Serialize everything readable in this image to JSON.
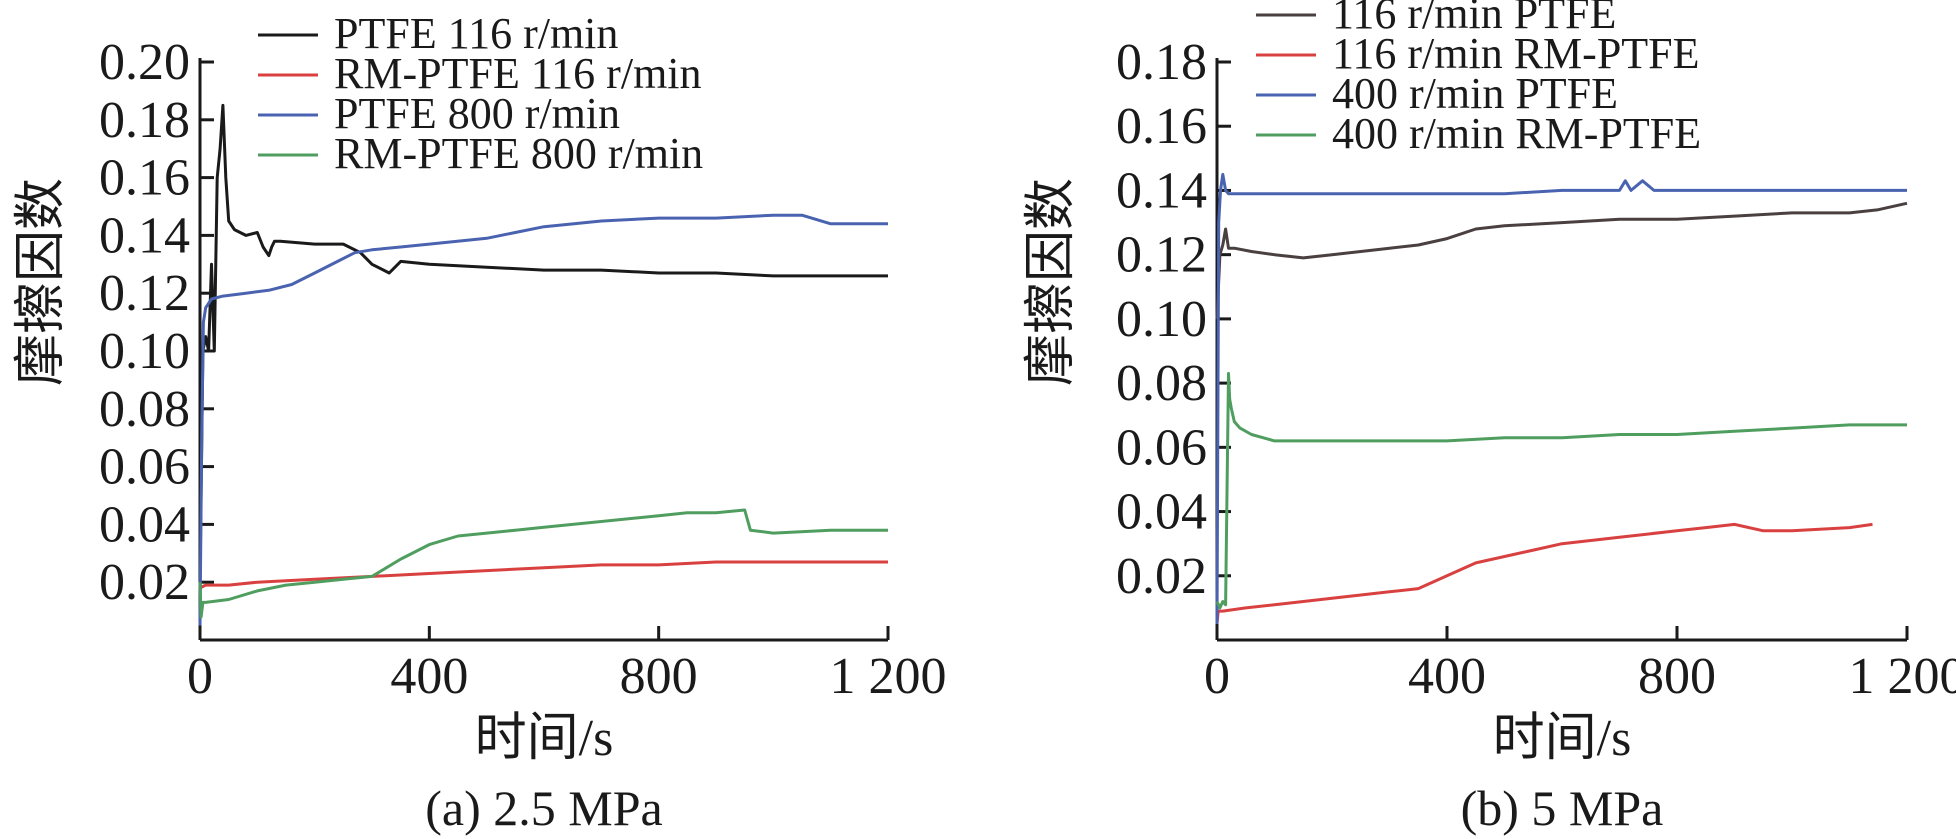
{
  "chart_data": [
    {
      "type": "line",
      "caption": "(a) 2.5 MPa",
      "xlabel": "时间/s",
      "ylabel": "摩擦因数",
      "xlim": [
        0,
        1200
      ],
      "ylim": [
        0,
        0.2
      ],
      "x_ticks": [
        "0",
        "400",
        "800",
        "1 200"
      ],
      "x_tick_values": [
        0,
        400,
        800,
        1200
      ],
      "y_ticks": [
        "0.02",
        "0.04",
        "0.06",
        "0.08",
        "0.10",
        "0.12",
        "0.14",
        "0.16",
        "0.18",
        "0.20"
      ],
      "y_tick_values": [
        0.02,
        0.04,
        0.06,
        0.08,
        0.1,
        0.12,
        0.14,
        0.16,
        0.18,
        0.2
      ],
      "grid": false,
      "legend_position": "top-center",
      "series": [
        {
          "name": "PTFE 116 r/min",
          "color": "#1a1a1a",
          "x": [
            0,
            5,
            10,
            15,
            20,
            25,
            30,
            35,
            40,
            45,
            50,
            60,
            80,
            100,
            110,
            120,
            125,
            130,
            140,
            200,
            250,
            280,
            300,
            330,
            350,
            400,
            500,
            600,
            700,
            800,
            900,
            1000,
            1100,
            1200
          ],
          "y": [
            0.02,
            0.1,
            0.105,
            0.1,
            0.13,
            0.1,
            0.16,
            0.17,
            0.185,
            0.16,
            0.145,
            0.142,
            0.14,
            0.141,
            0.136,
            0.133,
            0.136,
            0.138,
            0.138,
            0.137,
            0.137,
            0.134,
            0.13,
            0.127,
            0.131,
            0.13,
            0.129,
            0.128,
            0.128,
            0.127,
            0.127,
            0.126,
            0.126,
            0.126
          ]
        },
        {
          "name": "RM-PTFE 116 r/min",
          "color": "#d94040",
          "x": [
            0,
            10,
            50,
            100,
            200,
            300,
            400,
            500,
            600,
            700,
            800,
            900,
            1000,
            1100,
            1200
          ],
          "y": [
            0.018,
            0.019,
            0.019,
            0.02,
            0.021,
            0.022,
            0.023,
            0.024,
            0.025,
            0.026,
            0.026,
            0.027,
            0.027,
            0.027,
            0.027
          ]
        },
        {
          "name": "PTFE 800 r/min",
          "color": "#4a63b0",
          "x": [
            0,
            3,
            6,
            10,
            20,
            40,
            80,
            120,
            160,
            200,
            240,
            270,
            300,
            350,
            400,
            500,
            550,
            600,
            700,
            800,
            900,
            1000,
            1050,
            1100,
            1200
          ],
          "y": [
            0.005,
            0.07,
            0.11,
            0.115,
            0.118,
            0.119,
            0.12,
            0.121,
            0.123,
            0.127,
            0.131,
            0.134,
            0.135,
            0.136,
            0.137,
            0.139,
            0.141,
            0.143,
            0.145,
            0.146,
            0.146,
            0.147,
            0.147,
            0.144,
            0.144
          ]
        },
        {
          "name": "RM-PTFE 800 r/min",
          "color": "#4f9e5f",
          "x": [
            0,
            2,
            5,
            10,
            50,
            100,
            150,
            200,
            250,
            300,
            350,
            400,
            450,
            500,
            550,
            600,
            700,
            800,
            850,
            900,
            950,
            960,
            1000,
            1100,
            1200
          ],
          "y": [
            0.02,
            0.008,
            0.013,
            0.013,
            0.014,
            0.017,
            0.019,
            0.02,
            0.021,
            0.022,
            0.028,
            0.033,
            0.036,
            0.037,
            0.038,
            0.039,
            0.041,
            0.043,
            0.044,
            0.044,
            0.045,
            0.038,
            0.037,
            0.038,
            0.038
          ]
        }
      ]
    },
    {
      "type": "line",
      "caption": "(b) 5 MPa",
      "xlabel": "时间/s",
      "ylabel": "摩擦因数",
      "xlim": [
        0,
        1200
      ],
      "ylim": [
        0,
        0.18
      ],
      "x_ticks": [
        "0",
        "400",
        "800",
        "1 200"
      ],
      "x_tick_values": [
        0,
        400,
        800,
        1200
      ],
      "y_ticks": [
        "0.02",
        "0.04",
        "0.06",
        "0.08",
        "0.10",
        "0.12",
        "0.14",
        "0.16",
        "0.18"
      ],
      "y_tick_values": [
        0.02,
        0.04,
        0.06,
        0.08,
        0.1,
        0.12,
        0.14,
        0.16,
        0.18
      ],
      "grid": false,
      "legend_position": "top-center",
      "series": [
        {
          "name": "116 r/min PTFE",
          "color": "#4a4040",
          "x": [
            0,
            5,
            10,
            15,
            20,
            30,
            60,
            100,
            150,
            200,
            250,
            300,
            350,
            400,
            450,
            500,
            600,
            700,
            800,
            900,
            1000,
            1100,
            1150,
            1200
          ],
          "y": [
            0.1,
            0.12,
            0.123,
            0.128,
            0.122,
            0.122,
            0.121,
            0.12,
            0.119,
            0.12,
            0.121,
            0.122,
            0.123,
            0.125,
            0.128,
            0.129,
            0.13,
            0.131,
            0.131,
            0.132,
            0.133,
            0.133,
            0.134,
            0.136
          ]
        },
        {
          "name": "116 r/min RM-PTFE",
          "color": "#d94040",
          "x": [
            0,
            2,
            10,
            50,
            100,
            150,
            200,
            250,
            300,
            350,
            400,
            450,
            500,
            550,
            600,
            700,
            800,
            850,
            900,
            950,
            1000,
            1100,
            1140
          ],
          "y": [
            0.005,
            0.009,
            0.009,
            0.01,
            0.011,
            0.012,
            0.013,
            0.014,
            0.015,
            0.016,
            0.02,
            0.024,
            0.026,
            0.028,
            0.03,
            0.032,
            0.034,
            0.035,
            0.036,
            0.034,
            0.034,
            0.035,
            0.036
          ]
        },
        {
          "name": "400 r/min PTFE",
          "color": "#4a63b0",
          "x": [
            0,
            3,
            6,
            10,
            15,
            20,
            50,
            100,
            200,
            300,
            400,
            500,
            600,
            700,
            710,
            720,
            740,
            760,
            800,
            900,
            1000,
            1100,
            1200
          ],
          "y": [
            0.005,
            0.13,
            0.14,
            0.145,
            0.14,
            0.139,
            0.139,
            0.139,
            0.139,
            0.139,
            0.139,
            0.139,
            0.14,
            0.14,
            0.143,
            0.14,
            0.143,
            0.14,
            0.14,
            0.14,
            0.14,
            0.14,
            0.14
          ]
        },
        {
          "name": "400 r/min RM-PTFE",
          "color": "#4f9e5f",
          "x": [
            0,
            5,
            10,
            15,
            20,
            22,
            25,
            30,
            40,
            60,
            80,
            100,
            150,
            200,
            300,
            400,
            500,
            600,
            700,
            800,
            900,
            1000,
            1100,
            1200
          ],
          "y": [
            0.012,
            0.01,
            0.012,
            0.011,
            0.083,
            0.075,
            0.072,
            0.068,
            0.066,
            0.064,
            0.063,
            0.062,
            0.062,
            0.062,
            0.062,
            0.062,
            0.063,
            0.063,
            0.064,
            0.064,
            0.065,
            0.066,
            0.067,
            0.067
          ]
        }
      ]
    }
  ]
}
